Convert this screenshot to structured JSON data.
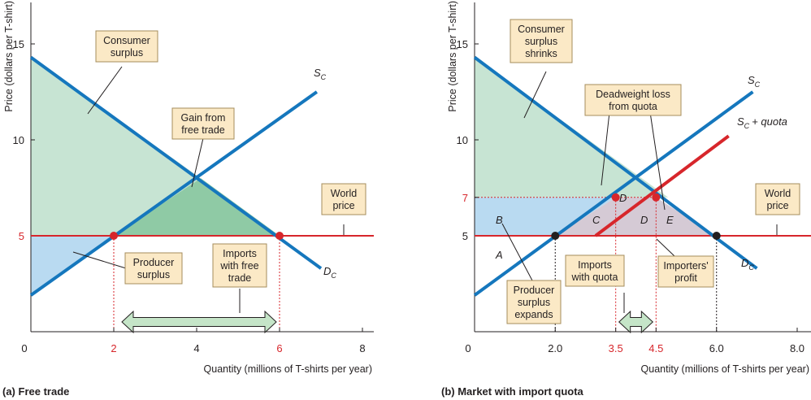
{
  "colors": {
    "demand_supply_line": "#1577bd",
    "world_price_line": "#d7262b",
    "quota_supply_line": "#d7262b",
    "consumer_surplus_fill": "#c7e4d3",
    "gain_fill": "#8fcaa5",
    "producer_surplus_fill": "#b9daf1",
    "deadweight_fill": "#d5cad5",
    "callout_fill": "#fbe9c6",
    "callout_border": "#a58d5c",
    "arrow_fill": "#c5e5c8",
    "point_red": "#d7262b",
    "point_black": "#231f20"
  },
  "chart_data": [
    {
      "type": "line",
      "caption": "(a) Free trade",
      "xlabel": "Quantity (millions of T-shirts per year)",
      "ylabel": "Price (dollars per T-shirt)",
      "xlim": [
        0,
        8.3
      ],
      "ylim": [
        0,
        16.5
      ],
      "x_ticks": [
        0,
        2,
        4,
        6,
        8
      ],
      "x_tick_labels": [
        "0",
        "2",
        "4",
        "6",
        "8"
      ],
      "red_x_ticks": [
        2,
        6
      ],
      "y_ticks": [
        10,
        15
      ],
      "y_tick_labels": [
        "10",
        "15"
      ],
      "red_y_tick": {
        "value": 5,
        "label": "5"
      },
      "series": [
        {
          "name": "D",
          "sub": "C",
          "points": [
            [
              0,
              14.3
            ],
            [
              7.0,
              3.3
            ]
          ]
        },
        {
          "name": "S",
          "sub": "C",
          "points": [
            [
              0,
              1.9
            ],
            [
              6.9,
              12.5
            ]
          ]
        }
      ],
      "world_price": {
        "y": 5,
        "label_lines": [
          "World",
          "price"
        ]
      },
      "equilibrium_points": [
        [
          2,
          5
        ],
        [
          6,
          5
        ]
      ],
      "areas": {
        "consumer_surplus": [
          [
            0,
            14.3
          ],
          [
            4.1,
            8.0
          ],
          [
            6,
            5
          ],
          [
            0,
            5
          ]
        ],
        "gain_from_trade": [
          [
            4.1,
            8.0
          ],
          [
            6,
            5
          ],
          [
            2,
            5
          ]
        ],
        "producer_surplus": [
          [
            0,
            5
          ],
          [
            2,
            5
          ],
          [
            0,
            1.9
          ]
        ]
      },
      "callouts": [
        {
          "key": "consumer_surplus",
          "lines": [
            "Consumer",
            "surplus"
          ]
        },
        {
          "key": "gain",
          "lines": [
            "Gain from",
            "free trade"
          ]
        },
        {
          "key": "producer_surplus",
          "lines": [
            "Producer",
            "surplus"
          ]
        },
        {
          "key": "imports",
          "lines": [
            "Imports",
            "with free",
            "trade"
          ]
        }
      ],
      "imports_arrow": [
        2,
        6
      ]
    },
    {
      "type": "line",
      "caption": "(b) Market with import quota",
      "xlabel": "Quantity (millions of T-shirts per year)",
      "ylabel": "Price (dollars per T-shirt)",
      "xlim": [
        0,
        8.3
      ],
      "ylim": [
        0,
        16.5
      ],
      "x_ticks": [
        0,
        2.0,
        3.5,
        4.5,
        6.0,
        8.0
      ],
      "x_tick_labels": [
        "0",
        "2.0",
        "3.5",
        "4.5",
        "6.0",
        "8.0"
      ],
      "red_x_ticks": [
        3.5,
        4.5
      ],
      "y_ticks": [
        5,
        10,
        15
      ],
      "y_tick_labels": [
        "5",
        "10",
        "15"
      ],
      "red_y_tick": {
        "value": 7,
        "label": "7"
      },
      "series": [
        {
          "name": "D",
          "sub": "C",
          "points": [
            [
              0,
              14.3
            ],
            [
              7.0,
              3.3
            ]
          ]
        },
        {
          "name": "S",
          "sub": "C",
          "points": [
            [
              0,
              1.9
            ],
            [
              6.9,
              12.5
            ]
          ]
        },
        {
          "name": "S",
          "sub": "C",
          "suffix": "+ quota",
          "points": [
            [
              3.0,
              5.0
            ],
            [
              6.3,
              10.2
            ]
          ]
        }
      ],
      "world_price": {
        "y": 5,
        "label_lines": [
          "World",
          "price"
        ]
      },
      "quota_price": 7,
      "red_points": [
        [
          3.5,
          7
        ],
        [
          4.5,
          7
        ]
      ],
      "black_points": [
        [
          2.0,
          5
        ],
        [
          6.0,
          5
        ]
      ],
      "areas": {
        "consumer_surplus": [
          [
            0,
            14.3
          ],
          [
            4.8,
            7
          ],
          [
            0,
            7
          ]
        ],
        "producer_surplus": [
          [
            0,
            7
          ],
          [
            3.5,
            7
          ],
          [
            2.0,
            5
          ],
          [
            0,
            5
          ],
          [
            0,
            1.9
          ]
        ],
        "deadweight": [
          [
            3.5,
            7
          ],
          [
            4.5,
            7
          ],
          [
            6.0,
            5
          ],
          [
            2.0,
            5
          ]
        ]
      },
      "area_letters": {
        "A": "A",
        "B": "B",
        "C": "C",
        "D1": "D",
        "D2": "D",
        "E": "E"
      },
      "callouts": [
        {
          "key": "consumer",
          "lines": [
            "Consumer",
            "surplus",
            "shrinks"
          ]
        },
        {
          "key": "deadweight",
          "lines": [
            "Deadweight loss",
            "from quota"
          ]
        },
        {
          "key": "producer",
          "lines": [
            "Producer",
            "surplus",
            "expands"
          ]
        },
        {
          "key": "imports",
          "lines": [
            "Imports",
            "with quota"
          ]
        },
        {
          "key": "importers",
          "lines": [
            "Importers'",
            "profit"
          ]
        }
      ],
      "imports_arrow": [
        3.5,
        4.5
      ]
    }
  ]
}
